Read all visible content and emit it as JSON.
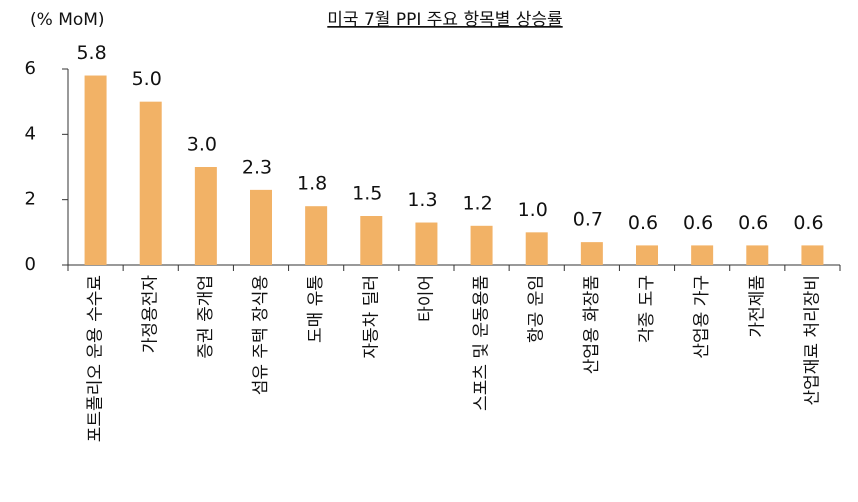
{
  "chart_data": {
    "type": "bar",
    "title": "미국 7월 PPI 주요 항목별 상승률",
    "y_label": "(% MoM)",
    "categories": [
      "포트폴리오 운용 수수료",
      "가정용전자",
      "증권 중개업",
      "섬유 주택 장식용",
      "도매 유통",
      "자동차 딜러",
      "타이어",
      "스포츠 및 운동용품",
      "항공 운임",
      "산업용 화장품",
      "각종 도구",
      "산업용 가구",
      "가전제품",
      "산업재료 처리장비"
    ],
    "values": [
      5.8,
      5.0,
      3.0,
      2.3,
      1.8,
      1.5,
      1.3,
      1.2,
      1.0,
      0.7,
      0.6,
      0.6,
      0.6,
      0.6
    ],
    "value_labels": [
      "5.8",
      "5.0",
      "3.0",
      "2.3",
      "1.8",
      "1.5",
      "1.3",
      "1.2",
      "1.0",
      "0.7",
      "0.6",
      "0.6",
      "0.6",
      "0.6"
    ],
    "color": "#f2b266",
    "ylim": [
      0,
      6
    ],
    "yticks": [
      0,
      2,
      4,
      6
    ],
    "grid": false
  }
}
